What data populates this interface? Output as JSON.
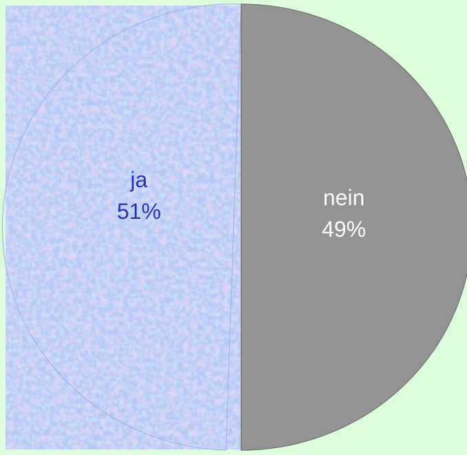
{
  "colors": {
    "background": "#dcfcdc",
    "texture_base": "#b8c8f4",
    "texture_pink": "#e2b8e6",
    "texture_cyan": "#a8e2f6",
    "texture_blue": "#9fb0ee",
    "nein_fill": "#939393",
    "ja_label": "#2834b4",
    "nein_label": "#ffffff"
  },
  "chart_data": {
    "type": "pie",
    "slices": [
      {
        "label": "ja",
        "value": 51,
        "value_label": "51%",
        "pattern": "blue-pink-texture"
      },
      {
        "label": "nein",
        "value": 49,
        "value_label": "49%",
        "fill": "gray"
      }
    ]
  }
}
